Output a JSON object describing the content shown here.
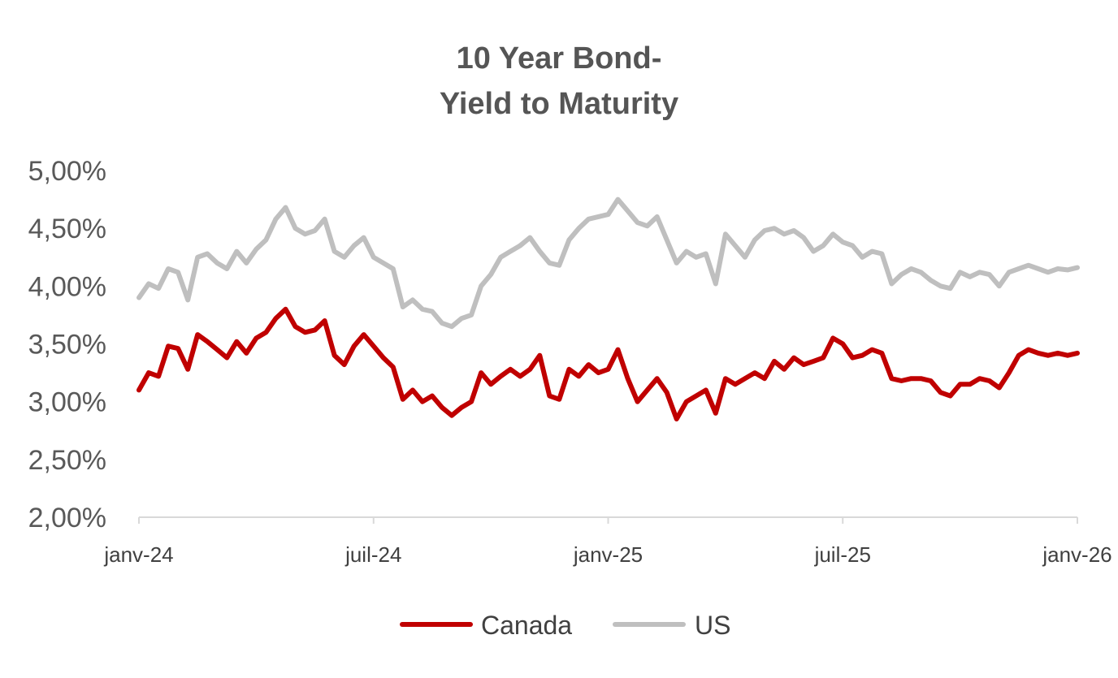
{
  "chart_data": {
    "type": "line",
    "title_lines": [
      "10 Year Bond-",
      "Yield to Maturity"
    ],
    "xlabel": "",
    "ylabel": "",
    "ylim": [
      2.0,
      5.0
    ],
    "y_ticks": [
      2.0,
      2.5,
      3.0,
      3.5,
      4.0,
      4.5,
      5.0
    ],
    "y_tick_labels": [
      "2,00%",
      "2,50%",
      "3,00%",
      "3,50%",
      "4,00%",
      "4,50%",
      "5,00%"
    ],
    "x_range": [
      0,
      24
    ],
    "x_unit": "months since janv-24",
    "x_ticks": [
      0,
      6,
      12,
      18,
      24
    ],
    "x_tick_labels": [
      "janv-24",
      "juil-24",
      "janv-25",
      "juil-25",
      "janv-26"
    ],
    "grid": false,
    "legend_position": "bottom",
    "series": [
      {
        "name": "Canada",
        "color": "#C00000",
        "x": [
          0.0,
          0.25,
          0.5,
          0.75,
          1.0,
          1.25,
          1.5,
          1.75,
          2.0,
          2.25,
          2.5,
          2.75,
          3.0,
          3.25,
          3.5,
          3.75,
          4.0,
          4.25,
          4.5,
          4.75,
          5.0,
          5.25,
          5.5,
          5.75,
          6.0,
          6.25,
          6.5,
          6.75,
          7.0,
          7.25,
          7.5,
          7.75,
          8.0,
          8.25,
          8.5,
          8.75,
          9.0,
          9.25,
          9.5,
          9.75,
          10.0,
          10.25,
          10.5,
          10.75,
          11.0,
          11.25,
          11.5,
          11.75,
          12.0,
          12.25,
          12.5,
          12.75,
          13.0,
          13.25,
          13.5,
          13.75,
          14.0,
          14.25,
          14.5,
          14.75,
          15.0,
          15.25,
          15.5,
          15.75,
          16.0,
          16.25,
          16.5,
          16.75,
          17.0,
          17.25,
          17.5,
          17.75,
          18.0,
          18.25,
          18.5,
          18.75,
          19.0,
          19.25,
          19.5,
          19.75,
          20.0,
          20.25,
          20.5,
          20.75,
          21.0,
          21.25,
          21.5,
          21.75,
          22.0,
          22.25,
          22.5,
          22.75,
          23.0,
          23.25,
          23.5,
          23.75,
          24.0
        ],
        "values": [
          3.1,
          3.25,
          3.22,
          3.48,
          3.46,
          3.28,
          3.58,
          3.52,
          3.45,
          3.38,
          3.52,
          3.42,
          3.55,
          3.6,
          3.72,
          3.8,
          3.65,
          3.6,
          3.62,
          3.7,
          3.4,
          3.32,
          3.48,
          3.58,
          3.48,
          3.38,
          3.3,
          3.02,
          3.1,
          3.0,
          3.05,
          2.95,
          2.88,
          2.95,
          3.0,
          3.25,
          3.15,
          3.22,
          3.28,
          3.22,
          3.28,
          3.4,
          3.05,
          3.02,
          3.28,
          3.22,
          3.32,
          3.25,
          3.28,
          3.45,
          3.2,
          3.0,
          3.1,
          3.2,
          3.08,
          2.85,
          3.0,
          3.05,
          3.1,
          2.9,
          3.2,
          3.15,
          3.2,
          3.25,
          3.2,
          3.35,
          3.28,
          3.38,
          3.32,
          3.35,
          3.38,
          3.55,
          3.5,
          3.38,
          3.4,
          3.45,
          3.42,
          3.2,
          3.18,
          3.2,
          3.2,
          3.18,
          3.08,
          3.05,
          3.15,
          3.15,
          3.2,
          3.18,
          3.12,
          3.25,
          3.4,
          3.45,
          3.42,
          3.4,
          3.42,
          3.4,
          3.42
        ]
      },
      {
        "name": "US",
        "color": "#BFBFBF",
        "x": [
          0.0,
          0.25,
          0.5,
          0.75,
          1.0,
          1.25,
          1.5,
          1.75,
          2.0,
          2.25,
          2.5,
          2.75,
          3.0,
          3.25,
          3.5,
          3.75,
          4.0,
          4.25,
          4.5,
          4.75,
          5.0,
          5.25,
          5.5,
          5.75,
          6.0,
          6.25,
          6.5,
          6.75,
          7.0,
          7.25,
          7.5,
          7.75,
          8.0,
          8.25,
          8.5,
          8.75,
          9.0,
          9.25,
          9.5,
          9.75,
          10.0,
          10.25,
          10.5,
          10.75,
          11.0,
          11.25,
          11.5,
          11.75,
          12.0,
          12.25,
          12.5,
          12.75,
          13.0,
          13.25,
          13.5,
          13.75,
          14.0,
          14.25,
          14.5,
          14.75,
          15.0,
          15.25,
          15.5,
          15.75,
          16.0,
          16.25,
          16.5,
          16.75,
          17.0,
          17.25,
          17.5,
          17.75,
          18.0,
          18.25,
          18.5,
          18.75,
          19.0,
          19.25,
          19.5,
          19.75,
          20.0,
          20.25,
          20.5,
          20.75,
          21.0,
          21.25,
          21.5,
          21.75,
          22.0,
          22.25,
          22.5,
          22.75,
          23.0,
          23.25,
          23.5,
          23.75,
          24.0
        ],
        "values": [
          3.9,
          4.02,
          3.98,
          4.15,
          4.12,
          3.88,
          4.25,
          4.28,
          4.2,
          4.15,
          4.3,
          4.2,
          4.32,
          4.4,
          4.58,
          4.68,
          4.5,
          4.45,
          4.48,
          4.58,
          4.3,
          4.25,
          4.35,
          4.42,
          4.25,
          4.2,
          4.15,
          3.82,
          3.88,
          3.8,
          3.78,
          3.68,
          3.65,
          3.72,
          3.75,
          4.0,
          4.1,
          4.25,
          4.3,
          4.35,
          4.42,
          4.3,
          4.2,
          4.18,
          4.4,
          4.5,
          4.58,
          4.6,
          4.62,
          4.75,
          4.65,
          4.55,
          4.52,
          4.6,
          4.4,
          4.2,
          4.3,
          4.25,
          4.28,
          4.02,
          4.45,
          4.35,
          4.25,
          4.4,
          4.48,
          4.5,
          4.45,
          4.48,
          4.42,
          4.3,
          4.35,
          4.45,
          4.38,
          4.35,
          4.25,
          4.3,
          4.28,
          4.02,
          4.1,
          4.15,
          4.12,
          4.05,
          4.0,
          3.98,
          4.12,
          4.08,
          4.12,
          4.1,
          4.0,
          4.12,
          4.15,
          4.18,
          4.15,
          4.12,
          4.15,
          4.14,
          4.16
        ]
      }
    ]
  }
}
